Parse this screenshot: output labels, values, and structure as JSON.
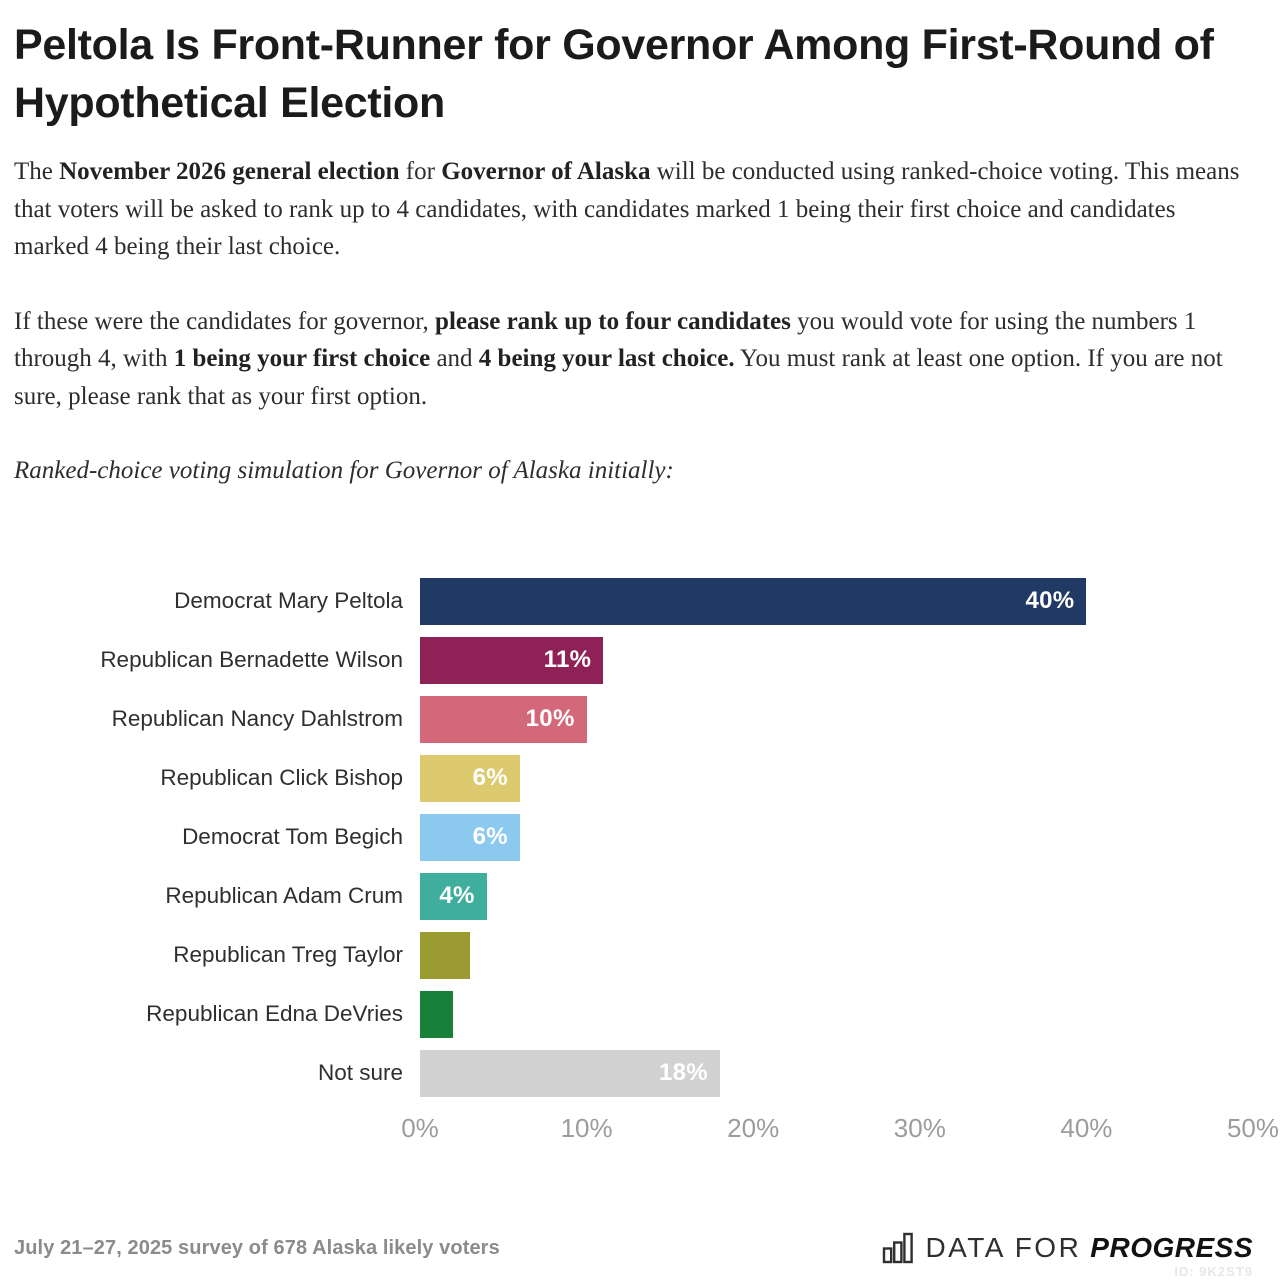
{
  "page": {
    "title": "Peltola Is Front-Runner for Governor Among First-Round of Hypothetical Election",
    "chart_note": "Ranked-choice voting simulation for Governor of Alaska initially:",
    "footer": {
      "survey": "July 21–27, 2025 survey of 678 Alaska likely voters",
      "logo_prefix": "DATA FOR",
      "logo_suffix": "PROGRESS",
      "watermark": "ID: 9K2ST9"
    }
  },
  "intro": {
    "p1": [
      {
        "t": "The ",
        "b": 0
      },
      {
        "t": "November 2026 general election",
        "b": 1
      },
      {
        "t": " for ",
        "b": 0
      },
      {
        "t": "Governor of Alaska",
        "b": 1
      },
      {
        "t": " will be conducted using ranked-choice voting. This means that voters will be asked to rank up to 4 candidates, with candidates marked 1 being their first choice and candidates marked 4 being their last choice.",
        "b": 0
      }
    ],
    "p2": [
      {
        "t": "If these were the candidates for governor, ",
        "b": 0
      },
      {
        "t": "please rank up to four candidates",
        "b": 1
      },
      {
        "t": " you would vote for using the numbers 1 through 4, with ",
        "b": 0
      },
      {
        "t": "1 being your first choice",
        "b": 1
      },
      {
        "t": " and ",
        "b": 0
      },
      {
        "t": "4 being your last choice.",
        "b": 1
      },
      {
        "t": " You must rank at least one option. If you are not sure, please rank that as your first option.",
        "b": 0
      }
    ]
  },
  "chart_data": {
    "type": "bar",
    "orientation": "horizontal",
    "title": "Ranked-choice voting simulation for Governor of Alaska initially:",
    "categories": [
      "Democrat Mary Peltola",
      "Republican Bernadette Wilson",
      "Republican Nancy Dahlstrom",
      "Republican Click Bishop",
      "Democrat Tom Begich",
      "Republican Adam Crum",
      "Republican Treg Taylor",
      "Republican Edna DeVries",
      "Not sure"
    ],
    "values": [
      40,
      11,
      10,
      6,
      6,
      4,
      3,
      2,
      18
    ],
    "value_labels": [
      "40%",
      "11%",
      "10%",
      "6%",
      "6%",
      "4%",
      "",
      "",
      "18%"
    ],
    "colors": [
      "#203a65",
      "#8e2156",
      "#d26879",
      "#ddc96e",
      "#8cc9ef",
      "#3fae9c",
      "#9a9b31",
      "#17813a",
      "#d2d2d2"
    ],
    "value_label_color": "#ffffff",
    "x_ticks": [
      "0%",
      "10%",
      "20%",
      "30%",
      "40%",
      "50%"
    ],
    "xlim": [
      0,
      50
    ],
    "grid": false,
    "legend": false
  }
}
